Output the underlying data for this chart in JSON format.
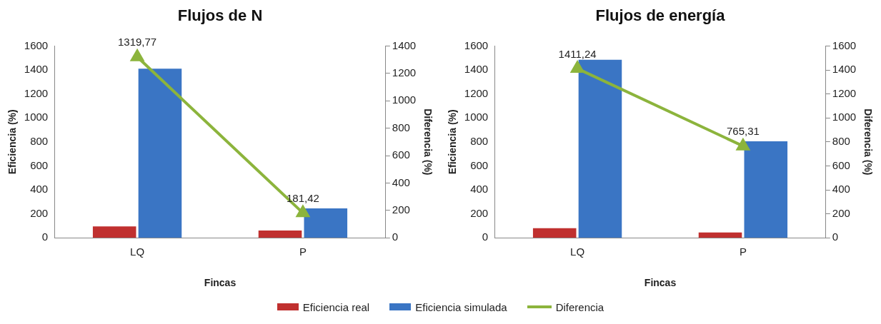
{
  "chart_data": [
    {
      "type": "bar",
      "title": "Flujos de N",
      "xlabel": "Fincas",
      "ylabel": "Eficiencia (%)",
      "y2label": "Diferencia (%)",
      "categories": [
        "LQ",
        "P"
      ],
      "series": [
        {
          "name": "Eficiencia real",
          "color": "#c0302f",
          "values": [
            95,
            60
          ]
        },
        {
          "name": "Eficiencia simulada",
          "color": "#3a75c4",
          "values": [
            1410,
            245
          ]
        },
        {
          "name": "Diferencia",
          "type": "line",
          "axis": "y2",
          "color": "#8cb43c",
          "values": [
            1319.77,
            181.42
          ],
          "value_labels": [
            "1319,77",
            "181,42"
          ]
        }
      ],
      "ylim": [
        0,
        1600
      ],
      "yticks": [
        0,
        200,
        400,
        600,
        800,
        1000,
        1200,
        1400,
        1600
      ],
      "y2lim": [
        0,
        1400
      ],
      "y2ticks": [
        0,
        200,
        400,
        600,
        800,
        1000,
        1200,
        1400
      ],
      "grid": false,
      "legend": "bottom",
      "marker": "triangle",
      "line_style": "solid"
    },
    {
      "type": "bar",
      "title": "Flujos de energía",
      "xlabel": "Fincas",
      "ylabel": "Eficiencia (%)",
      "y2label": "Diferencia (%)",
      "categories": [
        "LQ",
        "P"
      ],
      "series": [
        {
          "name": "Eficiencia real",
          "color": "#c0302f",
          "values": [
            80,
            45
          ]
        },
        {
          "name": "Eficiencia simulada",
          "color": "#3a75c4",
          "values": [
            1485,
            805
          ]
        },
        {
          "name": "Diferencia",
          "type": "line",
          "axis": "y2",
          "color": "#8cb43c",
          "values": [
            1411.24,
            765.31
          ],
          "value_labels": [
            "1411,24",
            "765,31"
          ]
        }
      ],
      "ylim": [
        0,
        1600
      ],
      "yticks": [
        0,
        200,
        400,
        600,
        800,
        1000,
        1200,
        1400,
        1600
      ],
      "y2lim": [
        0,
        1600
      ],
      "y2ticks": [
        0,
        200,
        400,
        600,
        800,
        1000,
        1200,
        1400,
        1600
      ],
      "grid": false,
      "legend": "bottom",
      "marker": "triangle",
      "line_style": "solid"
    }
  ]
}
